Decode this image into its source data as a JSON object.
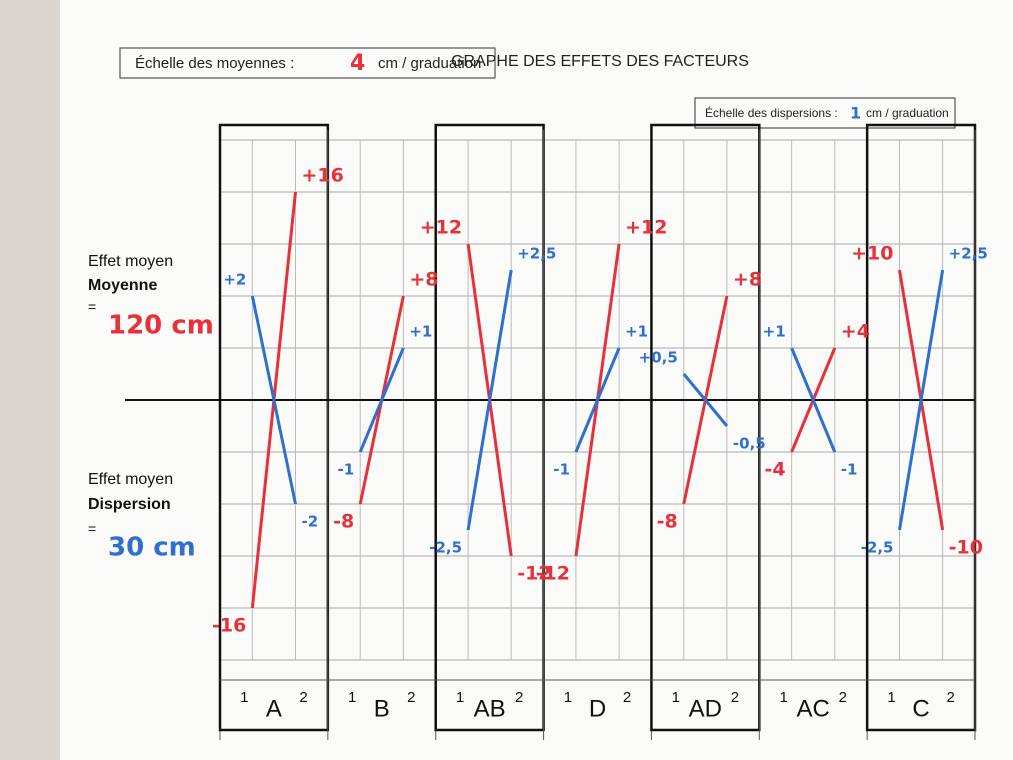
{
  "chart_data": {
    "type": "line",
    "title": "GRAPHE DES EFFETS DES FACTEURS",
    "scales": [
      {
        "label": "Échelle des moyennes :",
        "value": 4,
        "unit": "cm / graduation",
        "color": "#e8303a"
      },
      {
        "label": "Échelle des dispersions :",
        "value": 1,
        "unit": "cm / graduation",
        "color": "#2f6fd0"
      }
    ],
    "legend_prefix": "Effet moyen",
    "equals": "=",
    "categories": [
      "A",
      "B",
      "AB",
      "D",
      "AD",
      "AC",
      "C"
    ],
    "boxed": [
      true,
      false,
      true,
      false,
      true,
      false,
      true
    ],
    "levels": [
      "1",
      "2"
    ],
    "series": [
      {
        "name": "Moyenne",
        "color": "#e8303a",
        "summary": "120 cm",
        "values": [
          [
            -16,
            16
          ],
          [
            -8,
            8
          ],
          [
            12,
            -12
          ],
          [
            -12,
            12
          ],
          [
            -8,
            8
          ],
          [
            -4,
            4
          ],
          [
            10,
            -10
          ]
        ],
        "value_labels": [
          [
            "-16",
            "+16"
          ],
          [
            "-8",
            "+8"
          ],
          [
            "+12",
            "-12"
          ],
          [
            "-12",
            "+12"
          ],
          [
            "-8",
            "+8"
          ],
          [
            "-4",
            "+4"
          ],
          [
            "+10",
            "-10"
          ]
        ]
      },
      {
        "name": "Dispersion",
        "color": "#2f6fd0",
        "summary": "30 cm",
        "axis": "y2",
        "values": [
          [
            2,
            -2
          ],
          [
            -1,
            1
          ],
          [
            -2.5,
            2.5
          ],
          [
            -1,
            1
          ],
          [
            0.5,
            -0.5
          ],
          [
            1,
            -1
          ],
          [
            -2.5,
            2.5
          ]
        ],
        "value_labels": [
          [
            "+2",
            "-2"
          ],
          [
            "-1",
            "+1"
          ],
          [
            "-2,5",
            "+2,5"
          ],
          [
            "-1",
            "+1"
          ],
          [
            "+0,5",
            "-0,5"
          ],
          [
            "+1",
            "-1"
          ],
          [
            "-2,5",
            "+2,5"
          ]
        ]
      }
    ],
    "ylim": [
      -20,
      20
    ],
    "yticks": [
      -20,
      -16,
      -12,
      -8,
      -4,
      0,
      4,
      8,
      12,
      16,
      20
    ],
    "y2lim": [
      -5,
      5
    ],
    "grid": true
  }
}
